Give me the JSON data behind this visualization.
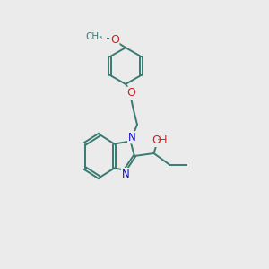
{
  "background_color": "#ebebeb",
  "bond_color": "#3a7a70",
  "N_color": "#1010cc",
  "O_color": "#cc2020",
  "line_width": 1.4,
  "figsize": [
    3.0,
    3.0
  ],
  "dpi": 100,
  "xlim": [
    0,
    10
  ],
  "ylim": [
    0,
    10
  ]
}
